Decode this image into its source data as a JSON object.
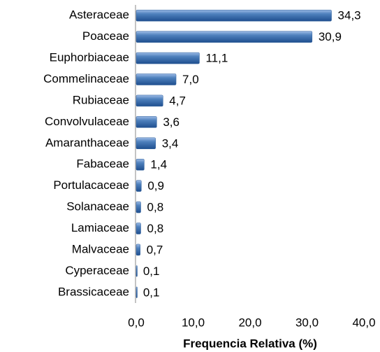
{
  "chart_data": {
    "type": "bar",
    "orientation": "horizontal",
    "x_label": "Frequencia Relativa (%)",
    "categories": [
      "Asteraceae",
      "Poaceae",
      "Euphorbiaceae",
      "Commelinaceae",
      "Rubiaceae",
      "Convolvulaceae",
      "Amaranthaceae",
      "Fabaceae",
      "Portulacaceae",
      "Solanaceae",
      "Lamiaceae",
      "Malvaceae",
      "Cyperaceae",
      "Brassicaceae"
    ],
    "values": [
      34.3,
      30.9,
      11.1,
      7.0,
      4.7,
      3.6,
      3.4,
      1.4,
      0.9,
      0.8,
      0.8,
      0.7,
      0.1,
      0.1
    ],
    "value_labels": [
      "34,3",
      "30,9",
      "11,1",
      "7,0",
      "4,7",
      "3,6",
      "3,4",
      "1,4",
      "0,9",
      "0,8",
      "0,8",
      "0,7",
      "0,1",
      "0,1"
    ],
    "color": "#4f81bd",
    "xlim": [
      0,
      40
    ],
    "xticks": [
      {
        "value": 0,
        "label": "0,0"
      },
      {
        "value": 10,
        "label": "10,0"
      },
      {
        "value": 20,
        "label": "20,0"
      },
      {
        "value": 30,
        "label": "30,0"
      },
      {
        "value": 40,
        "label": "40,0"
      }
    ],
    "grid": false
  }
}
